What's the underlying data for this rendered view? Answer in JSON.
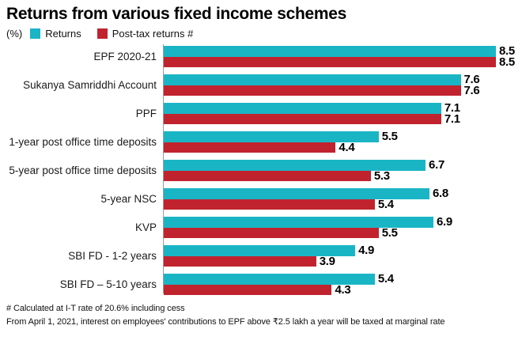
{
  "title": "Returns from various fixed income schemes",
  "unit_label": "(%)",
  "legend": [
    {
      "label": "Returns",
      "color": "#1ab5c5"
    },
    {
      "label": "Post-tax returns #",
      "color": "#c1232e"
    }
  ],
  "colors": {
    "returns": "#1ab5c5",
    "post_tax": "#c1232e",
    "axis": "#9b9b9b"
  },
  "footnotes": [
    "# Calculated at I-T rate of 20.6% including cess",
    "From April 1, 2021, interest on employees' contributions to EPF above ₹2.5 lakh a year will be taxed at marginal rate"
  ],
  "chart_data": {
    "type": "bar",
    "orientation": "horizontal",
    "title": "Returns from various fixed income schemes",
    "xlabel": "(%)",
    "ylabel": "",
    "xlim": [
      0,
      8.5
    ],
    "grid": false,
    "legend_position": "top",
    "value_labels": true,
    "categories": [
      "EPF 2020-21",
      "Sukanya Samriddhi Account",
      "PPF",
      "1-year post office time deposits",
      "5-year post office time deposits",
      "5-year NSC",
      "KVP",
      "SBI FD  - 1-2 years",
      "SBI FD – 5-10 years"
    ],
    "series": [
      {
        "name": "Returns",
        "values": [
          8.5,
          7.6,
          7.1,
          5.5,
          6.7,
          6.8,
          6.9,
          4.9,
          5.4
        ]
      },
      {
        "name": "Post-tax returns #",
        "values": [
          8.5,
          7.6,
          7.1,
          4.4,
          5.3,
          5.4,
          5.5,
          3.9,
          4.3
        ]
      }
    ]
  }
}
